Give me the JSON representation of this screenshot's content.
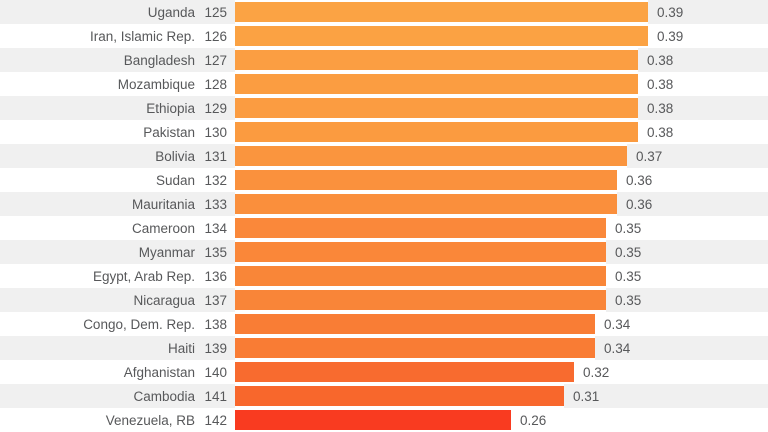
{
  "chart_data": {
    "type": "bar",
    "orientation": "horizontal",
    "title": "",
    "xlim": [
      0,
      0.5
    ],
    "grid": false,
    "legend": null,
    "text_color": "#57585a",
    "row_alt_background": "#f0f0f0",
    "row_background": "#ffffff",
    "rows": [
      {
        "country": "Uganda",
        "rank": "125",
        "value": 0.39,
        "value_label": "0.39",
        "bar_color": "#fba344"
      },
      {
        "country": "Iran, Islamic Rep.",
        "rank": "126",
        "value": 0.39,
        "value_label": "0.39",
        "bar_color": "#fba243"
      },
      {
        "country": "Bangladesh",
        "rank": "127",
        "value": 0.38,
        "value_label": "0.38",
        "bar_color": "#fb9e42"
      },
      {
        "country": "Mozambique",
        "rank": "128",
        "value": 0.38,
        "value_label": "0.38",
        "bar_color": "#fb9d41"
      },
      {
        "country": "Ethiopia",
        "rank": "129",
        "value": 0.38,
        "value_label": "0.38",
        "bar_color": "#fb9c41"
      },
      {
        "country": "Pakistan",
        "rank": "130",
        "value": 0.38,
        "value_label": "0.38",
        "bar_color": "#fb9b40"
      },
      {
        "country": "Bolivia",
        "rank": "131",
        "value": 0.37,
        "value_label": "0.37",
        "bar_color": "#fa953e"
      },
      {
        "country": "Sudan",
        "rank": "132",
        "value": 0.36,
        "value_label": "0.36",
        "bar_color": "#fa913d"
      },
      {
        "country": "Mauritania",
        "rank": "133",
        "value": 0.36,
        "value_label": "0.36",
        "bar_color": "#fa8f3c"
      },
      {
        "country": "Cameroon",
        "rank": "134",
        "value": 0.35,
        "value_label": "0.35",
        "bar_color": "#fa883a"
      },
      {
        "country": "Myanmar",
        "rank": "135",
        "value": 0.35,
        "value_label": "0.35",
        "bar_color": "#fa8739"
      },
      {
        "country": "Egypt, Arab Rep.",
        "rank": "136",
        "value": 0.35,
        "value_label": "0.35",
        "bar_color": "#f98638"
      },
      {
        "country": "Nicaragua",
        "rank": "137",
        "value": 0.35,
        "value_label": "0.35",
        "bar_color": "#f98538"
      },
      {
        "country": "Congo, Dem. Rep.",
        "rank": "138",
        "value": 0.34,
        "value_label": "0.34",
        "bar_color": "#f97d35"
      },
      {
        "country": "Haiti",
        "rank": "139",
        "value": 0.34,
        "value_label": "0.34",
        "bar_color": "#f97c34"
      },
      {
        "country": "Afghanistan",
        "rank": "140",
        "value": 0.32,
        "value_label": "0.32",
        "bar_color": "#f86b2f"
      },
      {
        "country": "Cambodia",
        "rank": "141",
        "value": 0.31,
        "value_label": "0.31",
        "bar_color": "#f8672c"
      },
      {
        "country": "Venezuela, RB",
        "rank": "142",
        "value": 0.26,
        "value_label": "0.26",
        "bar_color": "#f93b20"
      }
    ]
  }
}
